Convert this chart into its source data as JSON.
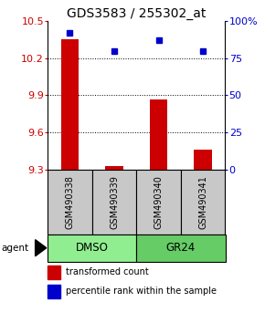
{
  "title": "GDS3583 / 255302_at",
  "samples": [
    "GSM490338",
    "GSM490339",
    "GSM490340",
    "GSM490341"
  ],
  "red_values": [
    10.35,
    9.33,
    9.87,
    9.46
  ],
  "blue_values": [
    92,
    80,
    87,
    80
  ],
  "ylim_left": [
    9.3,
    10.5
  ],
  "ylim_right": [
    0,
    100
  ],
  "yticks_left": [
    9.3,
    9.6,
    9.9,
    10.2,
    10.5
  ],
  "yticks_right": [
    0,
    25,
    50,
    75,
    100
  ],
  "ytick_labels_right": [
    "0",
    "25",
    "50",
    "75",
    "100%"
  ],
  "groups": [
    {
      "label": "DMSO",
      "samples": [
        0,
        1
      ],
      "color": "#90EE90"
    },
    {
      "label": "GR24",
      "samples": [
        2,
        3
      ],
      "color": "#66CC66"
    }
  ],
  "agent_label": "agent",
  "legend_red": "transformed count",
  "legend_blue": "percentile rank within the sample",
  "bar_color": "#CC0000",
  "dot_color": "#0000CC",
  "bg_sample_row": "#C8C8C8",
  "title_fontsize": 10,
  "tick_fontsize": 8,
  "legend_fontsize": 7,
  "sample_label_fontsize": 7
}
